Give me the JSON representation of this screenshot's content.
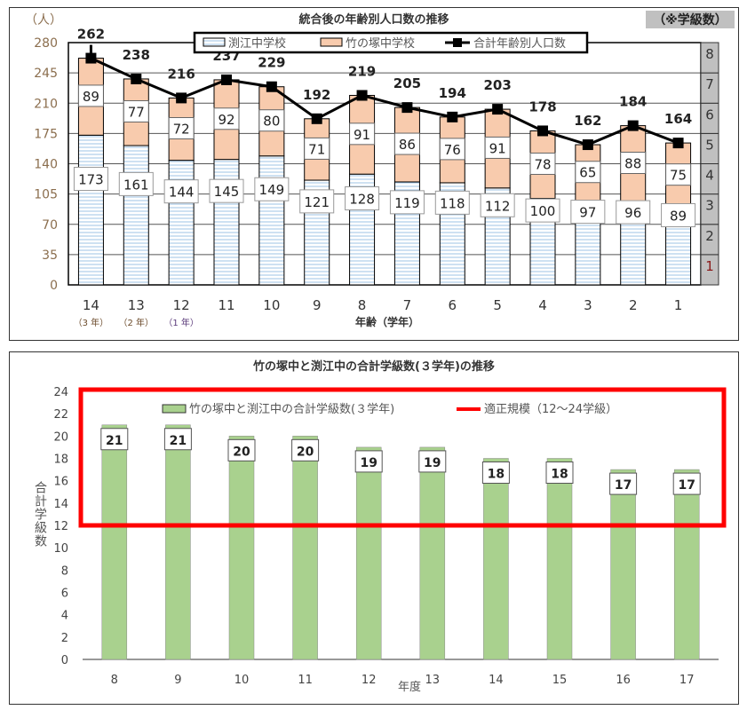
{
  "chart_data": [
    {
      "type": "bar",
      "stacked": true,
      "title": "統合後の年齢別人口数の推移",
      "note": "（※学級数）",
      "ylabel": "（人）",
      "xlabel": "年齢（学年）",
      "ylim": [
        0,
        280
      ],
      "yticks": [
        0,
        35,
        70,
        105,
        140,
        175,
        210,
        245,
        280
      ],
      "categories": [
        "14",
        "13",
        "12",
        "11",
        "10",
        "9",
        "8",
        "7",
        "6",
        "5",
        "4",
        "3",
        "2",
        "1"
      ],
      "category_sublabels": [
        "（3 年）",
        "（2 年）",
        "（1 年）",
        "",
        "",
        "",
        "",
        "",
        "",
        "",
        "",
        "",
        "",
        ""
      ],
      "series": [
        {
          "name": "渕江中学校",
          "type": "bar",
          "color": "#dbe8f6",
          "values": [
            173,
            161,
            144,
            145,
            149,
            121,
            128,
            119,
            118,
            112,
            100,
            97,
            96,
            89
          ]
        },
        {
          "name": "竹の塚中学校",
          "type": "bar",
          "color": "#f8cbad",
          "values": [
            89,
            77,
            72,
            92,
            80,
            71,
            91,
            86,
            76,
            91,
            78,
            65,
            88,
            75
          ]
        },
        {
          "name": "合計年齢別人口数",
          "type": "line",
          "color": "#000000",
          "values": [
            262,
            238,
            216,
            237,
            229,
            192,
            219,
            205,
            194,
            203,
            178,
            162,
            184,
            164
          ]
        }
      ],
      "secondary_axis_labels": [
        "1",
        "2",
        "3",
        "4",
        "5",
        "6",
        "7",
        "8"
      ],
      "legend": "top",
      "grid": true
    },
    {
      "type": "bar",
      "title": "竹の塚中と渕江中の合計学級数(３学年)の推移",
      "xlabel": "年度",
      "ylabel": "合計学級数",
      "ylim": [
        0,
        24
      ],
      "yticks": [
        0,
        2,
        4,
        6,
        8,
        10,
        12,
        14,
        16,
        18,
        20,
        22,
        24
      ],
      "categories": [
        "8",
        "9",
        "10",
        "11",
        "12",
        "13",
        "14",
        "15",
        "16",
        "17"
      ],
      "series": [
        {
          "name": "竹の塚中と渕江中の合計学級数(３学年)",
          "color": "#a9d18e",
          "values": [
            21,
            21,
            20,
            20,
            19,
            19,
            18,
            18,
            17,
            17
          ]
        }
      ],
      "reference_band": {
        "name": "適正規模（12～24学級）",
        "range": [
          12,
          24
        ],
        "color": "#ff0000"
      },
      "legend": "top",
      "grid": false
    }
  ]
}
